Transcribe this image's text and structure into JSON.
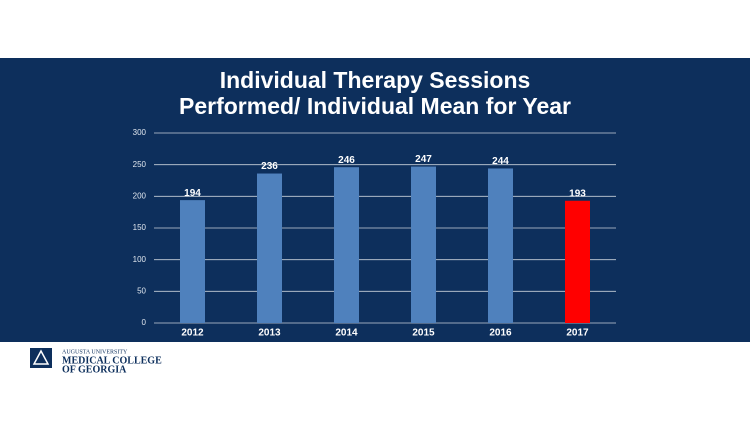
{
  "chart_data": {
    "type": "bar",
    "title": "Individual Therapy Sessions",
    "subtitle": "Performed/ Individual Mean for Year",
    "categories": [
      "2012",
      "2013",
      "2014",
      "2015",
      "2016",
      "2017"
    ],
    "values": [
      194,
      236,
      246,
      247,
      244,
      193
    ],
    "colors": [
      "#4f81bd",
      "#4f81bd",
      "#4f81bd",
      "#4f81bd",
      "#4f81bd",
      "#ff0000"
    ],
    "ylim": [
      0,
      300
    ],
    "yticks": [
      0,
      50,
      100,
      150,
      200,
      250,
      300
    ],
    "grid": true
  },
  "footer": {
    "institution": "AUGUSTA UNIVERSITY",
    "college_line1": "MEDICAL COLLEGE",
    "college_line2": "OF GEORGIA"
  }
}
